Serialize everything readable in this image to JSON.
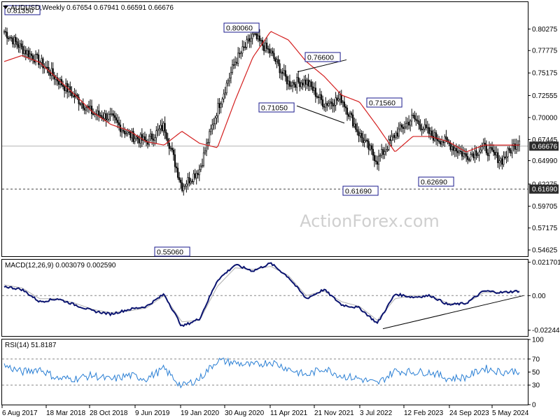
{
  "header": {
    "symbol": "AUDUSD,Weekly",
    "ohlc": "0.67654 0.67941 0.66591 0.66676"
  },
  "watermark": "ActionForex.com",
  "colors": {
    "candle": "#0c0c0c",
    "ma": "#d42020",
    "macd_line": "#0b1470",
    "macd_signal": "#b0b0b0",
    "rsi": "#2a7fd4",
    "trendline": "#000000",
    "label_border": "#1a1a8c",
    "current_box": "#2b2b2b"
  },
  "chart_data": [
    {
      "type": "candlestick",
      "panel": "price",
      "title": "AUDUSD,Weekly",
      "ylim": [
        0.539,
        0.834
      ],
      "yticks": [
        "0.80275",
        "0.77775",
        "0.75175",
        "0.72555",
        "0.70000",
        "0.67445",
        "0.64990",
        "0.62275",
        "0.59705",
        "0.57175",
        "0.54625"
      ],
      "xticks": [
        "6 Aug 2017",
        "18 Mar 2018",
        "28 Oct 2018",
        "9 Jun 2019",
        "19 Jan 2020",
        "30 Aug 2020",
        "11 Apr 2021",
        "21 Nov 2021",
        "3 Jul 2022",
        "12 Feb 2023",
        "24 Sep 2023",
        "5 May 2024"
      ],
      "grid": false,
      "current_price": "0.66676",
      "support_level": "0.61690",
      "swing_labels": [
        "0.81350",
        "0.80060",
        "0.76600",
        "0.71050",
        "0.71560",
        "0.61690",
        "0.62690",
        "0.55060"
      ],
      "series": [
        {
          "name": "MA",
          "approx_values": [
            0.765,
            0.772,
            0.764,
            0.745,
            0.726,
            0.706,
            0.692,
            0.685,
            0.672,
            0.668,
            0.684,
            0.67,
            0.665,
            0.72,
            0.77,
            0.8,
            0.79,
            0.765,
            0.748,
            0.726,
            0.718,
            0.69,
            0.66,
            0.678,
            0.678,
            0.672,
            0.66,
            0.668,
            0.668,
            0.668
          ]
        },
        {
          "name": "Close",
          "approx_values": [
            0.8,
            0.78,
            0.765,
            0.744,
            0.724,
            0.705,
            0.7,
            0.68,
            0.672,
            0.69,
            0.62,
            0.64,
            0.71,
            0.765,
            0.795,
            0.775,
            0.74,
            0.742,
            0.716,
            0.722,
            0.68,
            0.65,
            0.68,
            0.7,
            0.68,
            0.67,
            0.655,
            0.665,
            0.65,
            0.675
          ]
        }
      ]
    },
    {
      "type": "line",
      "panel": "macd",
      "title": "MACD(12,26,9) 0.003079 0.002590",
      "ylim": [
        -0.0262,
        0.0233
      ],
      "yticks": [
        "0.021701",
        "0.00",
        "-0.022445"
      ],
      "series": [
        {
          "name": "MACD",
          "approx_values": [
            0.006,
            0.004,
            -0.004,
            -0.002,
            -0.006,
            -0.01,
            -0.012,
            -0.009,
            -0.007,
            0.001,
            -0.02,
            -0.015,
            0.01,
            0.02,
            0.016,
            0.021,
            0.012,
            -0.002,
            0.004,
            -0.006,
            -0.008,
            -0.018,
            0.001,
            -0.001,
            0.0,
            -0.006,
            -0.005,
            0.003,
            0.002,
            0.003
          ]
        },
        {
          "name": "Signal",
          "approx_values": [
            0.007,
            0.005,
            -0.002,
            -0.002,
            -0.005,
            -0.009,
            -0.011,
            -0.01,
            -0.008,
            0.0,
            -0.017,
            -0.016,
            0.006,
            0.018,
            0.017,
            0.019,
            0.013,
            0.0,
            0.003,
            -0.004,
            -0.007,
            -0.016,
            -0.002,
            0.0,
            0.0,
            -0.005,
            -0.005,
            0.002,
            0.002,
            0.003
          ]
        }
      ]
    },
    {
      "type": "line",
      "panel": "rsi",
      "title": "RSI(14) 51.8187",
      "ylim": [
        0,
        100
      ],
      "yticks": [
        "100",
        "70",
        "50",
        "30",
        "0"
      ],
      "reference_lines": [
        70,
        30
      ],
      "series": [
        {
          "name": "RSI",
          "approx_values": [
            60,
            50,
            55,
            40,
            40,
            45,
            38,
            45,
            40,
            55,
            28,
            40,
            68,
            64,
            60,
            66,
            55,
            45,
            56,
            44,
            40,
            32,
            52,
            50,
            50,
            40,
            42,
            56,
            50,
            52
          ]
        }
      ]
    }
  ]
}
